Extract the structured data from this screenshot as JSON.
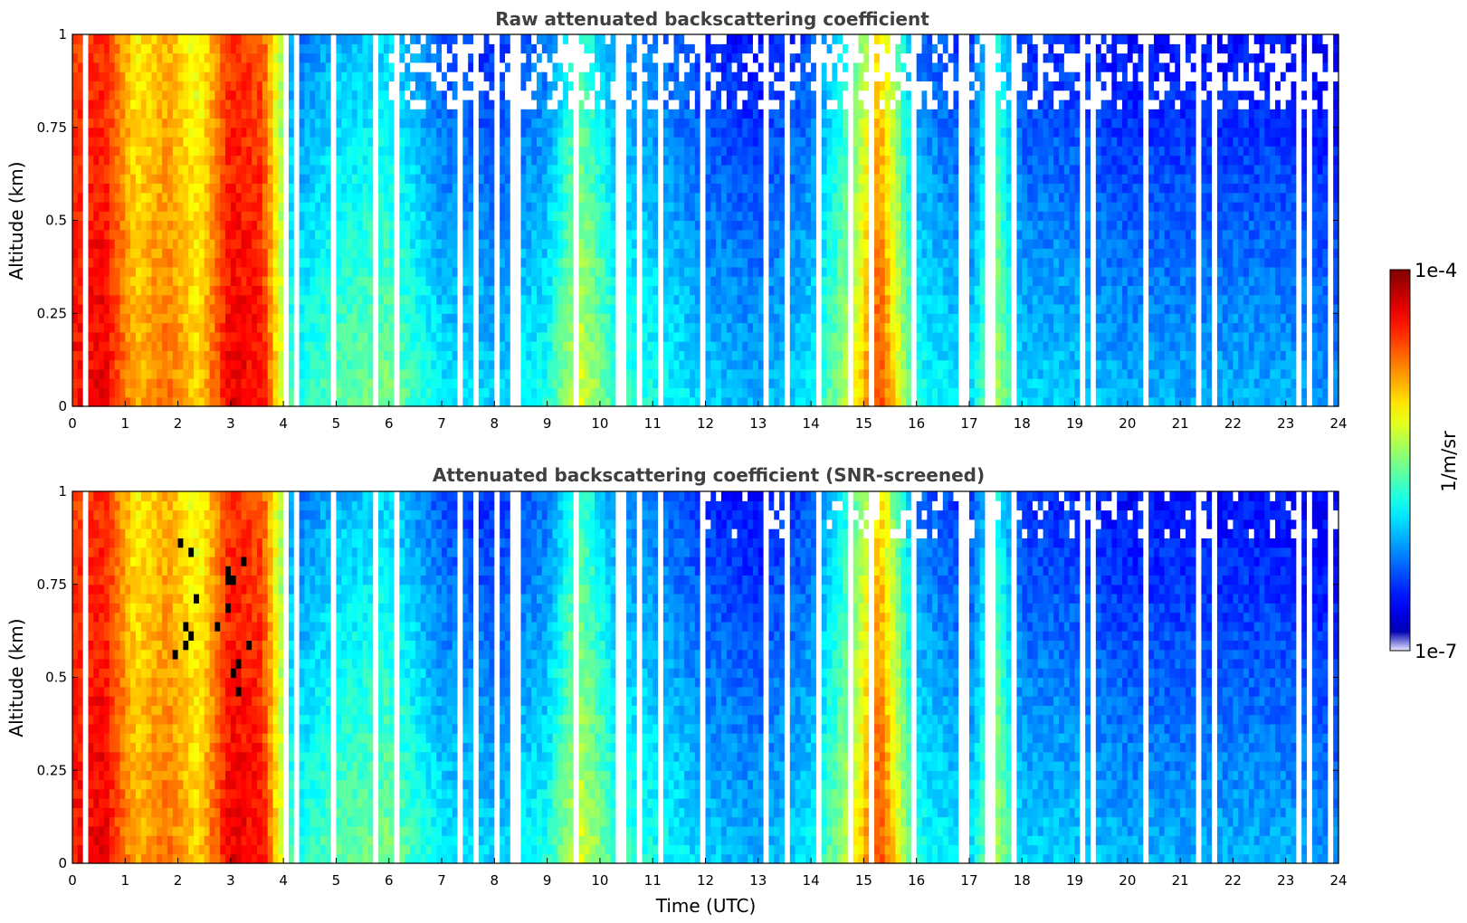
{
  "chart_data": [
    {
      "type": "heatmap",
      "title": "Raw attenuated backscattering coefficient",
      "xlabel": "",
      "ylabel": "Altitude (km)",
      "xlim": [
        0,
        24
      ],
      "ylim": [
        0,
        1
      ],
      "x_ticks": [
        "0",
        "1",
        "2",
        "3",
        "4",
        "5",
        "6",
        "7",
        "8",
        "9",
        "10",
        "11",
        "12",
        "13",
        "14",
        "15",
        "16",
        "17",
        "18",
        "19",
        "20",
        "21",
        "22",
        "23",
        "24"
      ],
      "y_ticks": [
        "0",
        "0.25",
        "0.5",
        "0.75",
        "1"
      ],
      "screened": false
    },
    {
      "type": "heatmap",
      "title": "Attenuated backscattering coefficient (SNR-screened)",
      "xlabel": "Time (UTC)",
      "ylabel": "Altitude (km)",
      "xlim": [
        0,
        24
      ],
      "ylim": [
        0,
        1
      ],
      "x_ticks": [
        "0",
        "1",
        "2",
        "3",
        "4",
        "5",
        "6",
        "7",
        "8",
        "9",
        "10",
        "11",
        "12",
        "13",
        "14",
        "15",
        "16",
        "17",
        "18",
        "19",
        "20",
        "21",
        "22",
        "23",
        "24"
      ],
      "y_ticks": [
        "0",
        "0.25",
        "0.5",
        "0.75",
        "1"
      ],
      "screened": true
    }
  ],
  "colorbar": {
    "label": "1/m/sr",
    "max_label": "1e-4",
    "min_label": "1e-7",
    "scale": "log",
    "range": [
      1e-07,
      0.0001
    ],
    "colormap": "jet"
  },
  "field_profile": {
    "time_utc": [
      0,
      0.6,
      1.2,
      1.8,
      2.4,
      3.0,
      3.6,
      4.2,
      5.0,
      6.0,
      7.0,
      8.0,
      9.0,
      9.6,
      10.3,
      11.0,
      12.0,
      13.0,
      14.0,
      14.7,
      15.3,
      16.0,
      17.0,
      17.5,
      18.0,
      19.0,
      20.0,
      21.0,
      22.0,
      23.0,
      24.0
    ],
    "log10_backscatter_near_surface": [
      -4.4,
      -4.3,
      -4.9,
      -4.7,
      -5.0,
      -4.3,
      -4.4,
      -5.8,
      -5.6,
      -5.5,
      -5.9,
      -6.0,
      -5.8,
      -5.2,
      -5.7,
      -5.8,
      -6.0,
      -6.1,
      -5.9,
      -5.3,
      -4.5,
      -5.8,
      -6.0,
      -5.3,
      -6.0,
      -6.0,
      -6.1,
      -6.1,
      -6.1,
      -6.1,
      -6.2
    ]
  }
}
